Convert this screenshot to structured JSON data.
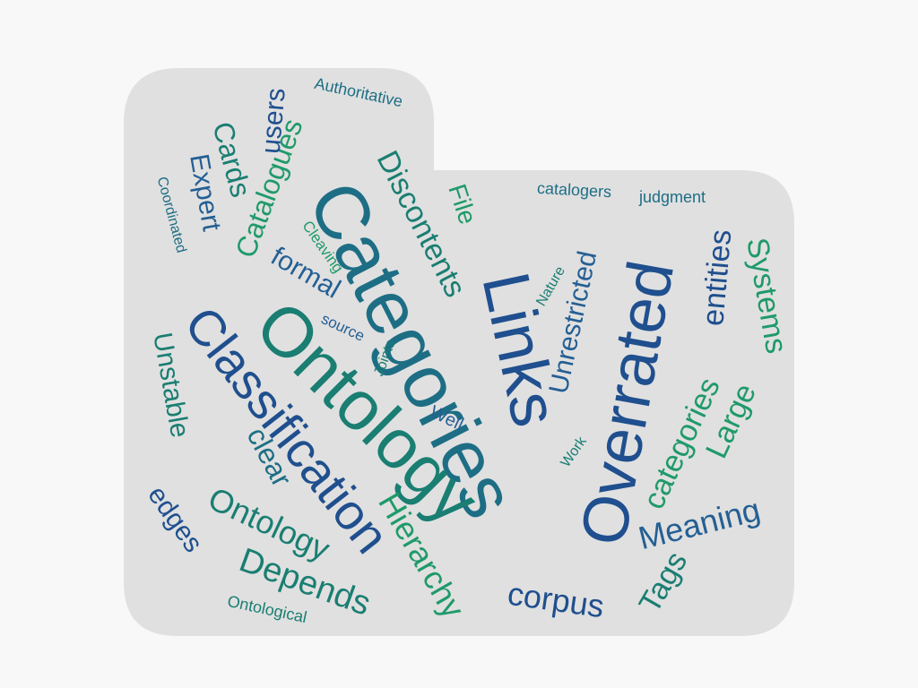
{
  "cloud": {
    "shape": "folder-icon",
    "background_color": "#e0e0e0",
    "page_color": "#f8f8f8",
    "palette": {
      "navy": "#1f4f8e",
      "blue": "#245f94",
      "teal": "#1d6e85",
      "tealgreen": "#1a7e72",
      "green": "#1f9a6a",
      "lightgreen": "#2aa55e"
    },
    "words": [
      {
        "text": "Categories",
        "color": "teal",
        "rotation": "down"
      },
      {
        "text": "Ontology",
        "color": "tealgreen",
        "rotation": "down"
      },
      {
        "text": "Links",
        "color": "navy",
        "rotation": "down"
      },
      {
        "text": "Overrated",
        "color": "navy",
        "rotation": "up"
      },
      {
        "text": "Classification",
        "color": "navy",
        "rotation": "down"
      },
      {
        "text": "Hierarchy",
        "color": "green",
        "rotation": "down"
      },
      {
        "text": "Ontology",
        "color": "tealgreen",
        "rotation": "down"
      },
      {
        "text": "Depends",
        "color": "tealgreen",
        "rotation": "down"
      },
      {
        "text": "Meaning",
        "color": "blue",
        "rotation": "tilt"
      },
      {
        "text": "corpus",
        "color": "navy",
        "rotation": "down"
      },
      {
        "text": "Tags",
        "color": "tealgreen",
        "rotation": "up"
      },
      {
        "text": "categories",
        "color": "green",
        "rotation": "up"
      },
      {
        "text": "Large",
        "color": "green",
        "rotation": "up"
      },
      {
        "text": "entities",
        "color": "navy",
        "rotation": "up"
      },
      {
        "text": "Systems",
        "color": "green",
        "rotation": "down"
      },
      {
        "text": "Unrestricted",
        "color": "blue",
        "rotation": "up"
      },
      {
        "text": "Discontents",
        "color": "tealgreen",
        "rotation": "down"
      },
      {
        "text": "File",
        "color": "green",
        "rotation": "down"
      },
      {
        "text": "Catalogues",
        "color": "green",
        "rotation": "up"
      },
      {
        "text": "Cards",
        "color": "tealgreen",
        "rotation": "down"
      },
      {
        "text": "Expert",
        "color": "blue",
        "rotation": "down"
      },
      {
        "text": "users",
        "color": "navy",
        "rotation": "up"
      },
      {
        "text": "formal",
        "color": "blue",
        "rotation": "down"
      },
      {
        "text": "Unstable",
        "color": "tealgreen",
        "rotation": "down"
      },
      {
        "text": "clear",
        "color": "teal",
        "rotation": "down"
      },
      {
        "text": "edges",
        "color": "navy",
        "rotation": "down"
      },
      {
        "text": "Authoritative",
        "color": "teal",
        "rotation": "down"
      },
      {
        "text": "catalogers",
        "color": "teal",
        "rotation": "down"
      },
      {
        "text": "judgment",
        "color": "teal",
        "rotation": "down"
      },
      {
        "text": "Coordinated",
        "color": "teal",
        "rotation": "down"
      },
      {
        "text": "Cleaving",
        "color": "green",
        "rotation": "down"
      },
      {
        "text": "source",
        "color": "blue",
        "rotation": "down"
      },
      {
        "text": "Joints",
        "color": "tealgreen",
        "rotation": "up"
      },
      {
        "text": "Nature",
        "color": "tealgreen",
        "rotation": "up"
      },
      {
        "text": "Well",
        "color": "blue",
        "rotation": "down"
      },
      {
        "text": "Work",
        "color": "tealgreen",
        "rotation": "up"
      },
      {
        "text": "Ontological",
        "color": "tealgreen",
        "rotation": "down"
      }
    ]
  }
}
